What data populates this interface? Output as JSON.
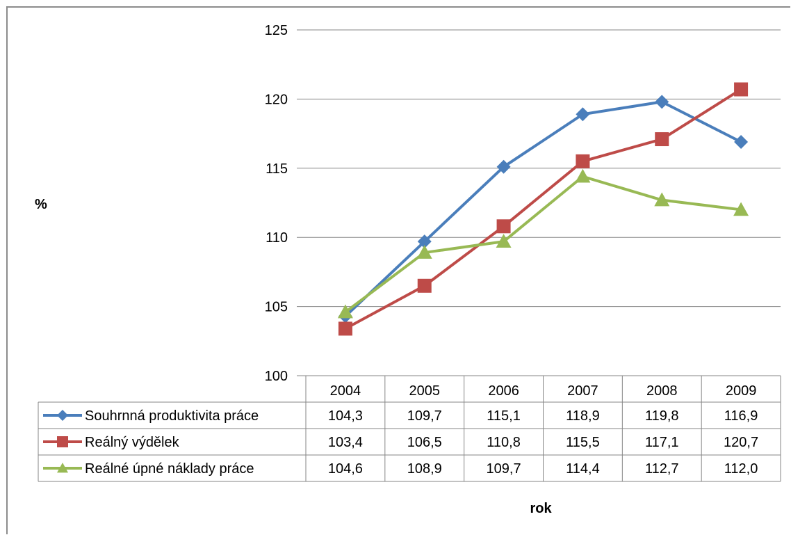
{
  "chart_data": {
    "type": "line",
    "title": "",
    "ylabel": "%",
    "xlabel": "rok",
    "ylim": [
      100,
      125
    ],
    "yticks": [
      100,
      105,
      110,
      115,
      120,
      125
    ],
    "grid": true,
    "legend": "data-table",
    "categories": [
      "2004",
      "2005",
      "2006",
      "2007",
      "2008",
      "2009"
    ],
    "series": [
      {
        "name": "Souhrnná produktivita práce",
        "color": "#4a7ebb",
        "marker": "diamond",
        "values": [
          104.3,
          109.7,
          115.1,
          118.9,
          119.8,
          116.9
        ],
        "labels": [
          "104,3",
          "109,7",
          "115,1",
          "118,9",
          "119,8",
          "116,9"
        ]
      },
      {
        "name": "Reálný výdělek",
        "color": "#be4b48",
        "marker": "square",
        "values": [
          103.4,
          106.5,
          110.8,
          115.5,
          117.1,
          120.7
        ],
        "labels": [
          "103,4",
          "106,5",
          "110,8",
          "115,5",
          "117,1",
          "120,7"
        ]
      },
      {
        "name": "Reálné úpné náklady práce",
        "color": "#98b954",
        "marker": "triangle",
        "values": [
          104.6,
          108.9,
          109.7,
          114.4,
          112.7,
          112.0
        ],
        "labels": [
          "104,6",
          "108,9",
          "109,7",
          "114,4",
          "112,7",
          "112,0"
        ]
      }
    ]
  }
}
